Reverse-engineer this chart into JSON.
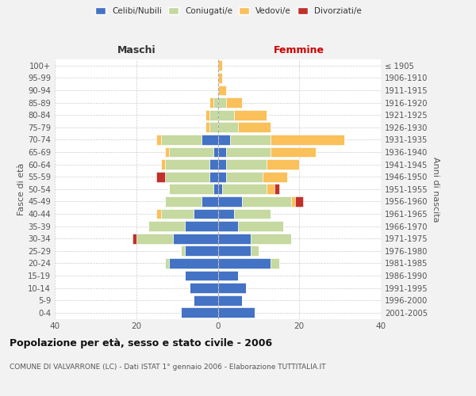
{
  "age_groups": [
    "0-4",
    "5-9",
    "10-14",
    "15-19",
    "20-24",
    "25-29",
    "30-34",
    "35-39",
    "40-44",
    "45-49",
    "50-54",
    "55-59",
    "60-64",
    "65-69",
    "70-74",
    "75-79",
    "80-84",
    "85-89",
    "90-94",
    "95-99",
    "100+"
  ],
  "birth_years": [
    "2001-2005",
    "1996-2000",
    "1991-1995",
    "1986-1990",
    "1981-1985",
    "1976-1980",
    "1971-1975",
    "1966-1970",
    "1961-1965",
    "1956-1960",
    "1951-1955",
    "1946-1950",
    "1941-1945",
    "1936-1940",
    "1931-1935",
    "1926-1930",
    "1921-1925",
    "1916-1920",
    "1911-1915",
    "1906-1910",
    "≤ 1905"
  ],
  "maschi": {
    "celibi": [
      9,
      6,
      7,
      8,
      12,
      8,
      11,
      8,
      6,
      4,
      1,
      2,
      2,
      1,
      4,
      0,
      0,
      0,
      0,
      0,
      0
    ],
    "coniugati": [
      0,
      0,
      0,
      0,
      1,
      1,
      9,
      9,
      8,
      9,
      11,
      11,
      11,
      11,
      10,
      2,
      2,
      1,
      0,
      0,
      0
    ],
    "vedovi": [
      0,
      0,
      0,
      0,
      0,
      0,
      0,
      0,
      1,
      0,
      0,
      0,
      1,
      1,
      1,
      1,
      1,
      1,
      0,
      0,
      0
    ],
    "divorziati": [
      0,
      0,
      0,
      0,
      0,
      0,
      1,
      0,
      0,
      0,
      0,
      2,
      0,
      0,
      0,
      0,
      0,
      0,
      0,
      0,
      0
    ]
  },
  "femmine": {
    "nubili": [
      9,
      6,
      7,
      5,
      13,
      8,
      8,
      5,
      4,
      6,
      1,
      2,
      2,
      2,
      3,
      0,
      0,
      0,
      0,
      0,
      0
    ],
    "coniugate": [
      0,
      0,
      0,
      0,
      2,
      2,
      10,
      11,
      9,
      12,
      11,
      9,
      10,
      11,
      10,
      5,
      4,
      2,
      0,
      0,
      0
    ],
    "vedove": [
      0,
      0,
      0,
      0,
      0,
      0,
      0,
      0,
      0,
      1,
      2,
      6,
      8,
      11,
      18,
      8,
      8,
      4,
      2,
      1,
      1
    ],
    "divorziate": [
      0,
      0,
      0,
      0,
      0,
      0,
      0,
      0,
      0,
      2,
      1,
      0,
      0,
      0,
      0,
      0,
      0,
      0,
      0,
      0,
      0
    ]
  },
  "colors": {
    "celibi_nubili": "#4472C4",
    "coniugati": "#C5D9A0",
    "vedovi": "#FAC05A",
    "divorziati": "#C0312B"
  },
  "title": "Popolazione per età, sesso e stato civile - 2006",
  "subtitle": "COMUNE DI VALVARRONE (LC) - Dati ISTAT 1° gennaio 2006 - Elaborazione TUTTITALIA.IT",
  "xlabel_left": "Maschi",
  "xlabel_right": "Femmine",
  "ylabel_left": "Fasce di età",
  "ylabel_right": "Anni di nascita",
  "xlim": 40,
  "bg_color": "#F2F2F2",
  "plot_bg": "#FFFFFF",
  "grid_color": "#CCCCCC"
}
